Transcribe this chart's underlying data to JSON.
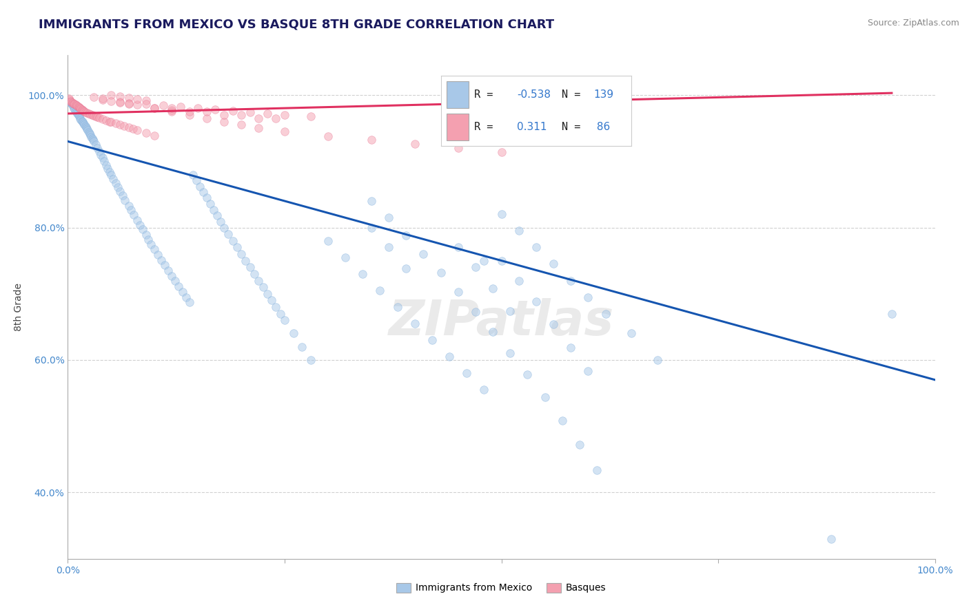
{
  "title": "IMMIGRANTS FROM MEXICO VS BASQUE 8TH GRADE CORRELATION CHART",
  "source": "Source: ZipAtlas.com",
  "ylabel": "8th Grade",
  "xlim": [
    0.0,
    1.0
  ],
  "ylim": [
    0.3,
    1.06
  ],
  "yticks": [
    0.4,
    0.6,
    0.8,
    1.0
  ],
  "ytick_labels": [
    "40.0%",
    "60.0%",
    "80.0%",
    "100.0%"
  ],
  "xtick_labels": [
    "0.0%",
    "100.0%"
  ],
  "R_mexico": -0.538,
  "N_mexico": 139,
  "R_basque": 0.311,
  "N_basque": 86,
  "blue_line_x": [
    0.0,
    1.0
  ],
  "blue_line_y": [
    0.93,
    0.57
  ],
  "pink_line_x": [
    0.0,
    0.95
  ],
  "pink_line_y": [
    0.972,
    1.003
  ],
  "mexico_scatter_x": [
    0.002,
    0.004,
    0.005,
    0.006,
    0.007,
    0.008,
    0.009,
    0.01,
    0.011,
    0.012,
    0.013,
    0.014,
    0.015,
    0.016,
    0.017,
    0.018,
    0.019,
    0.02,
    0.021,
    0.022,
    0.023,
    0.024,
    0.025,
    0.026,
    0.027,
    0.028,
    0.029,
    0.03,
    0.032,
    0.034,
    0.036,
    0.038,
    0.04,
    0.042,
    0.044,
    0.046,
    0.048,
    0.05,
    0.052,
    0.055,
    0.058,
    0.06,
    0.063,
    0.066,
    0.07,
    0.073,
    0.076,
    0.08,
    0.083,
    0.086,
    0.09,
    0.093,
    0.096,
    0.1,
    0.104,
    0.108,
    0.112,
    0.116,
    0.12,
    0.124,
    0.128,
    0.132,
    0.136,
    0.14,
    0.144,
    0.148,
    0.152,
    0.156,
    0.16,
    0.164,
    0.168,
    0.172,
    0.176,
    0.18,
    0.185,
    0.19,
    0.195,
    0.2,
    0.205,
    0.21,
    0.215,
    0.22,
    0.225,
    0.23,
    0.235,
    0.24,
    0.245,
    0.25,
    0.26,
    0.27,
    0.28,
    0.3,
    0.32,
    0.34,
    0.36,
    0.38,
    0.4,
    0.42,
    0.44,
    0.46,
    0.48,
    0.5,
    0.52,
    0.54,
    0.56,
    0.58,
    0.6,
    0.62,
    0.65,
    0.68,
    0.35,
    0.37,
    0.39,
    0.41,
    0.43,
    0.45,
    0.47,
    0.49,
    0.51,
    0.53,
    0.55,
    0.57,
    0.59,
    0.61,
    0.5,
    0.52,
    0.54,
    0.56,
    0.58,
    0.6,
    0.45,
    0.47,
    0.49,
    0.51,
    0.35,
    0.37,
    0.39,
    0.48,
    0.95,
    0.88
  ],
  "mexico_scatter_y": [
    0.99,
    0.988,
    0.985,
    0.983,
    0.98,
    0.978,
    0.976,
    0.974,
    0.972,
    0.97,
    0.968,
    0.965,
    0.963,
    0.961,
    0.959,
    0.957,
    0.955,
    0.953,
    0.951,
    0.949,
    0.947,
    0.944,
    0.942,
    0.94,
    0.937,
    0.935,
    0.932,
    0.93,
    0.925,
    0.92,
    0.915,
    0.91,
    0.905,
    0.9,
    0.894,
    0.889,
    0.884,
    0.879,
    0.873,
    0.867,
    0.861,
    0.855,
    0.848,
    0.841,
    0.833,
    0.826,
    0.819,
    0.811,
    0.804,
    0.797,
    0.789,
    0.782,
    0.775,
    0.767,
    0.759,
    0.751,
    0.743,
    0.735,
    0.727,
    0.719,
    0.711,
    0.703,
    0.695,
    0.687,
    0.879,
    0.871,
    0.862,
    0.854,
    0.845,
    0.836,
    0.827,
    0.818,
    0.809,
    0.8,
    0.79,
    0.78,
    0.77,
    0.76,
    0.75,
    0.74,
    0.73,
    0.72,
    0.71,
    0.7,
    0.69,
    0.68,
    0.67,
    0.66,
    0.64,
    0.62,
    0.6,
    0.78,
    0.755,
    0.73,
    0.705,
    0.68,
    0.655,
    0.63,
    0.605,
    0.58,
    0.555,
    0.82,
    0.795,
    0.77,
    0.745,
    0.72,
    0.695,
    0.67,
    0.64,
    0.6,
    0.84,
    0.815,
    0.788,
    0.76,
    0.732,
    0.703,
    0.673,
    0.643,
    0.61,
    0.578,
    0.544,
    0.509,
    0.472,
    0.434,
    0.75,
    0.72,
    0.688,
    0.654,
    0.619,
    0.583,
    0.77,
    0.74,
    0.708,
    0.674,
    0.8,
    0.77,
    0.738,
    0.75,
    0.67,
    0.33
  ],
  "basque_scatter_x": [
    0.001,
    0.002,
    0.003,
    0.004,
    0.005,
    0.006,
    0.007,
    0.008,
    0.009,
    0.01,
    0.011,
    0.012,
    0.013,
    0.014,
    0.015,
    0.016,
    0.017,
    0.018,
    0.019,
    0.02,
    0.022,
    0.024,
    0.026,
    0.028,
    0.03,
    0.032,
    0.034,
    0.036,
    0.04,
    0.044,
    0.048,
    0.05,
    0.055,
    0.06,
    0.065,
    0.07,
    0.075,
    0.08,
    0.09,
    0.1,
    0.06,
    0.08,
    0.1,
    0.12,
    0.14,
    0.16,
    0.18,
    0.2,
    0.22,
    0.25,
    0.3,
    0.35,
    0.4,
    0.45,
    0.5,
    0.14,
    0.18,
    0.22,
    0.1,
    0.12,
    0.05,
    0.06,
    0.07,
    0.08,
    0.09,
    0.07,
    0.09,
    0.11,
    0.13,
    0.15,
    0.17,
    0.19,
    0.21,
    0.23,
    0.25,
    0.28,
    0.04,
    0.05,
    0.06,
    0.07,
    0.03,
    0.04,
    0.12,
    0.16,
    0.2,
    0.24
  ],
  "basque_scatter_y": [
    0.995,
    0.993,
    0.991,
    0.99,
    0.989,
    0.988,
    0.987,
    0.986,
    0.985,
    0.984,
    0.983,
    0.982,
    0.981,
    0.98,
    0.979,
    0.978,
    0.977,
    0.976,
    0.975,
    0.974,
    0.973,
    0.972,
    0.971,
    0.97,
    0.969,
    0.968,
    0.967,
    0.966,
    0.964,
    0.962,
    0.96,
    0.959,
    0.957,
    0.955,
    0.953,
    0.951,
    0.949,
    0.947,
    0.943,
    0.939,
    0.99,
    0.985,
    0.98,
    0.975,
    0.97,
    0.965,
    0.96,
    0.955,
    0.95,
    0.945,
    0.938,
    0.932,
    0.926,
    0.92,
    0.914,
    0.975,
    0.97,
    0.965,
    0.98,
    0.977,
    1.0,
    0.998,
    0.996,
    0.994,
    0.992,
    0.988,
    0.986,
    0.984,
    0.982,
    0.98,
    0.978,
    0.976,
    0.974,
    0.972,
    0.97,
    0.968,
    0.993,
    0.991,
    0.989,
    0.987,
    0.997,
    0.995,
    0.98,
    0.975,
    0.97,
    0.965
  ],
  "watermark": "ZIPatlas",
  "scatter_alpha": 0.5,
  "scatter_size": 70,
  "blue_scatter_color": "#a8c8e8",
  "pink_scatter_color": "#f4a0b0",
  "blue_scatter_edge": "#7aabda",
  "pink_scatter_edge": "#e87090",
  "blue_line_color": "#1555b0",
  "pink_line_color": "#e03060",
  "grid_color": "#d0d0d0",
  "title_color": "#1a1a5e",
  "title_fontsize": 13.0,
  "source_fontsize": 9,
  "axis_label_fontsize": 10,
  "tick_color": "#4488cc"
}
